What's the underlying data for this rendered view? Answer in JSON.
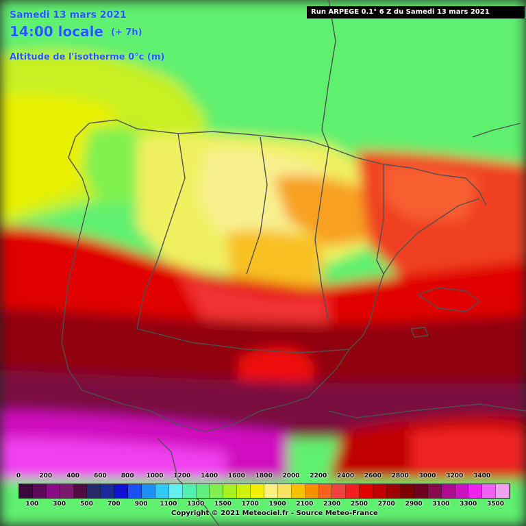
{
  "header": {
    "date": "Samedi 13 mars 2021",
    "time": "14:00 locale",
    "offset": "(+ 7h)",
    "parameter": "Altitude de l'isotherme 0°c (m)",
    "run": "Run ARPEGE 0.1° 6 Z du Samedi 13 mars 2021"
  },
  "legend": {
    "top_labels": [
      "0",
      "200",
      "400",
      "600",
      "800",
      "1000",
      "1200",
      "1400",
      "1600",
      "1800",
      "2000",
      "2200",
      "2400",
      "2600",
      "2800",
      "3000",
      "3200",
      "3400"
    ],
    "bottom_labels": [
      "100",
      "300",
      "500",
      "700",
      "900",
      "1100",
      "1300",
      "1500",
      "1700",
      "1900",
      "2100",
      "2300",
      "2500",
      "2700",
      "2900",
      "3100",
      "3300",
      "3500"
    ],
    "colors": [
      "#3a0a3c",
      "#5c0a5a",
      "#880e85",
      "#7a1a6e",
      "#500c40",
      "#2a2a6a",
      "#1a2a9a",
      "#1010d0",
      "#1a50f0",
      "#1a90f5",
      "#30c8f5",
      "#60f0f0",
      "#50f0b0",
      "#60f080",
      "#80f050",
      "#a8f020",
      "#d0f010",
      "#f0f000",
      "#f8f080",
      "#f8e060",
      "#f8c000",
      "#f89000",
      "#f86020",
      "#f04040",
      "#f02020",
      "#e00000",
      "#c00000",
      "#a00000",
      "#800000",
      "#700020",
      "#8a0a50",
      "#b00a90",
      "#d010c0",
      "#f020f0",
      "#f060f0",
      "#f0a0f0"
    ],
    "copyright": "Copyright © 2021 Meteociel.fr - Source Meteo-France"
  }
}
